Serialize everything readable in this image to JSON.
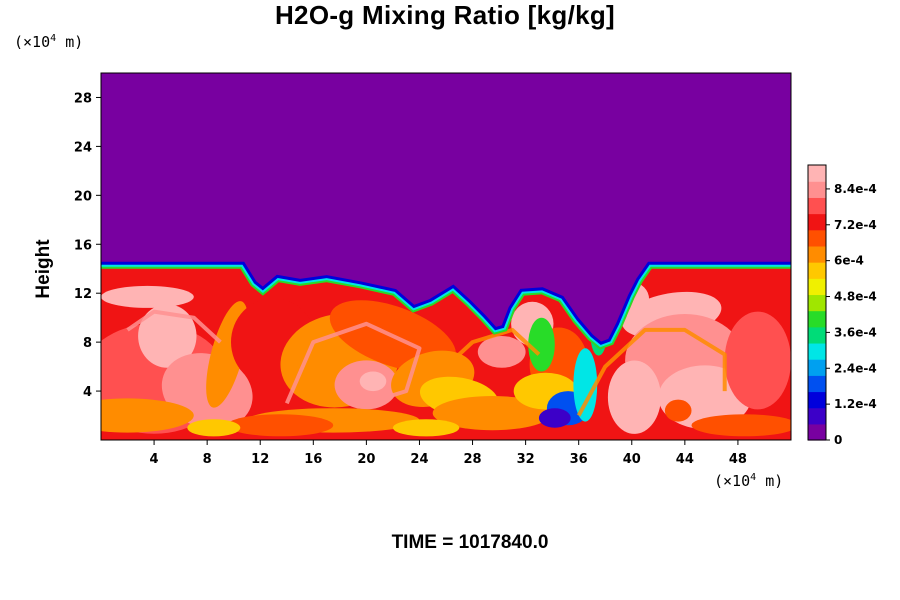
{
  "chart_data": {
    "type": "heatmap",
    "title": "H2O-g Mixing Ratio [kg/kg]",
    "ylabel": "Height",
    "xlabel": "",
    "x_unit_base": "×10",
    "x_unit_exp": "4",
    "x_unit_suffix": "m",
    "y_unit_base": "×10",
    "y_unit_exp": "4",
    "y_unit_suffix": "m",
    "xlim": [
      0,
      52
    ],
    "ylim": [
      0,
      30
    ],
    "x_ticks": [
      4,
      8,
      12,
      16,
      20,
      24,
      28,
      32,
      36,
      40,
      44,
      48
    ],
    "y_ticks": [
      4,
      8,
      12,
      16,
      20,
      24,
      28
    ],
    "colorbar": {
      "min": 0,
      "max": 0.00092,
      "tick_values": [
        0,
        0.00012,
        0.00024,
        0.00036,
        0.00048,
        0.0006,
        0.00072,
        0.00084
      ],
      "tick_labels": [
        "0",
        "1.2e-4",
        "2.4e-4",
        "3.6e-4",
        "4.8e-4",
        "6e-4",
        "7.2e-4",
        "8.4e-4"
      ],
      "colors": [
        "#7800a0",
        "#3c00c8",
        "#0000dc",
        "#0050f0",
        "#00a0f0",
        "#00e6e6",
        "#00dc78",
        "#28dc28",
        "#a0e600",
        "#f0f000",
        "#ffc800",
        "#ff8c00",
        "#ff5000",
        "#f01414",
        "#ff5050",
        "#ff9090",
        "#ffb4b4"
      ]
    },
    "field_description_values": {
      "upper_layer_value": 0,
      "moist_layer_top_height": 14,
      "moist_layer_typical_value": 0.00078
    },
    "time_label": "TIME = 1017840.0"
  }
}
